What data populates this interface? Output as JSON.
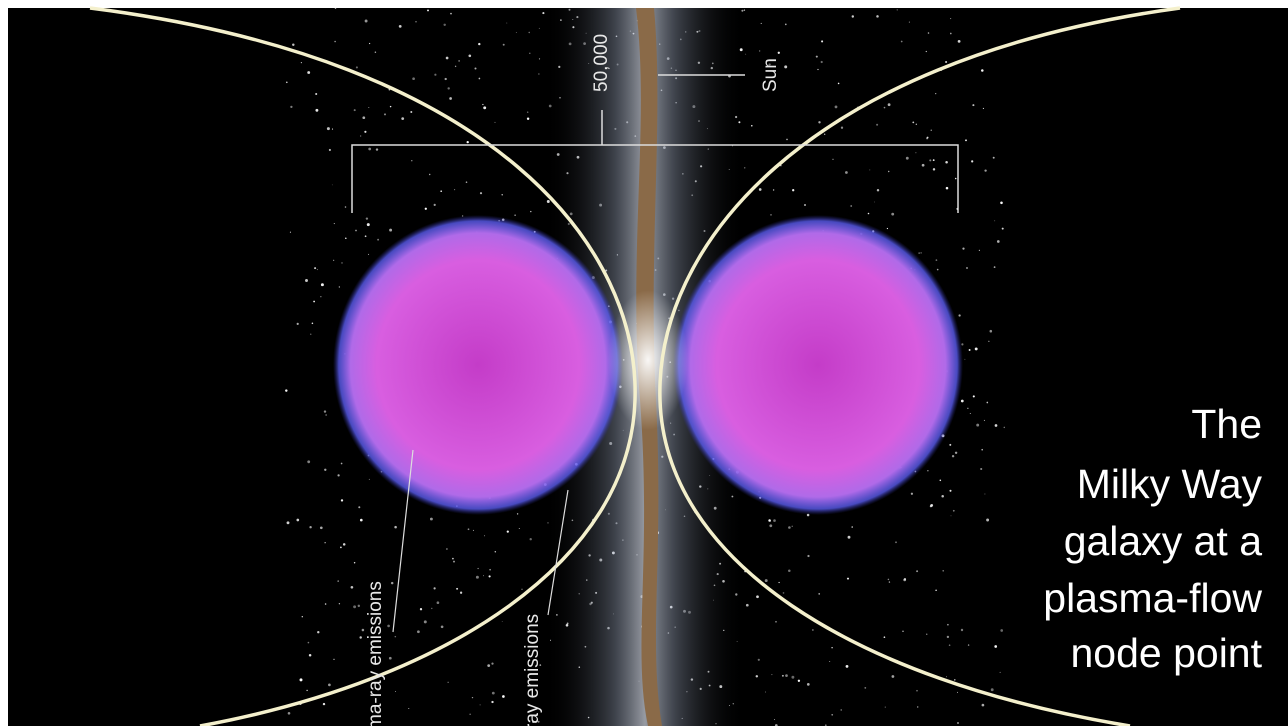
{
  "labels": {
    "distance": "50,000",
    "sun": "Sun",
    "emission_left": "ma-ray emissions",
    "emission_right": "ray emissions"
  },
  "caption": {
    "lines": [
      "The",
      "Milky Way",
      "galaxy at a",
      "plasma-flow",
      "node point"
    ]
  }
}
